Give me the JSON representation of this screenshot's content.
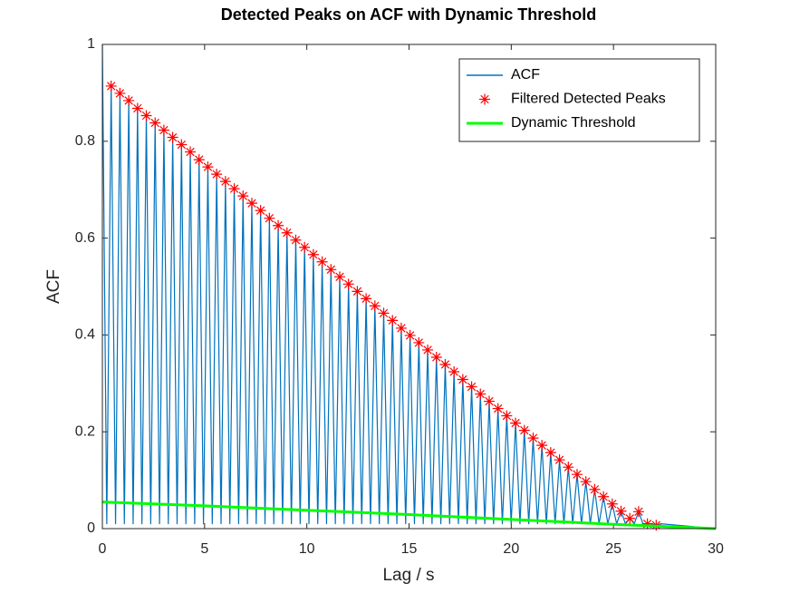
{
  "chart_data": {
    "type": "line",
    "title": "Detected Peaks on ACF with Dynamic Threshold",
    "xlabel": "Lag / s",
    "ylabel": "ACF",
    "xlim": [
      0,
      30
    ],
    "ylim": [
      0,
      1
    ],
    "xticks": [
      0,
      5,
      10,
      15,
      20,
      25,
      30
    ],
    "yticks": [
      0,
      0.2,
      0.4,
      0.6,
      0.8,
      1
    ],
    "grid": false,
    "legend": "northeast",
    "series": [
      {
        "name": "ACF",
        "color": "#0072bd",
        "style": "line",
        "x": [
          0,
          0.215,
          0.43,
          0.645,
          0.86,
          1.075,
          1.29,
          1.505,
          1.72,
          1.935,
          2.15,
          2.365,
          2.58,
          2.795,
          3.01,
          3.225,
          3.44,
          3.655,
          3.87,
          4.085,
          4.3,
          4.515,
          4.73,
          4.945,
          5.16,
          5.375,
          5.59,
          5.805,
          6.02,
          6.235,
          6.45,
          6.665,
          6.88,
          7.095,
          7.31,
          7.525,
          7.74,
          7.955,
          8.17,
          8.385,
          8.6,
          8.815,
          9.03,
          9.245,
          9.46,
          9.675,
          9.89,
          10.105,
          10.32,
          10.535,
          10.75,
          10.965,
          11.18,
          11.395,
          11.61,
          11.825,
          12.04,
          12.255,
          12.47,
          12.685,
          12.9,
          13.115,
          13.33,
          13.545,
          13.76,
          13.975,
          14.19,
          14.405,
          14.62,
          14.835,
          15.05,
          15.265,
          15.48,
          15.695,
          15.91,
          16.125,
          16.34,
          16.555,
          16.77,
          16.985,
          17.2,
          17.415,
          17.63,
          17.845,
          18.06,
          18.275,
          18.49,
          18.705,
          18.92,
          19.135,
          19.35,
          19.565,
          19.78,
          19.995,
          20.21,
          20.425,
          20.64,
          20.855,
          21.07,
          21.285,
          21.5,
          21.715,
          21.93,
          22.145,
          22.36,
          22.575,
          22.79,
          23.005,
          23.22,
          23.435,
          23.65,
          23.865,
          24.08,
          24.295,
          24.51,
          24.725,
          24.94,
          25.155,
          25.37,
          25.585,
          25.8,
          26.015,
          26.23,
          26.445,
          26.66,
          26.875,
          27.09,
          27.305,
          30
        ],
        "values": [
          1,
          0.01,
          0.914,
          0.01,
          0.899,
          0.01,
          0.884,
          0.01,
          0.868,
          0.01,
          0.853,
          0.01,
          0.838,
          0.01,
          0.823,
          0.01,
          0.808,
          0.01,
          0.793,
          0.01,
          0.778,
          0.01,
          0.762,
          0.01,
          0.747,
          0.01,
          0.732,
          0.01,
          0.717,
          0.01,
          0.702,
          0.01,
          0.687,
          0.01,
          0.672,
          0.01,
          0.657,
          0.01,
          0.641,
          0.01,
          0.626,
          0.01,
          0.611,
          0.01,
          0.596,
          0.01,
          0.581,
          0.01,
          0.566,
          0.01,
          0.551,
          0.01,
          0.535,
          0.01,
          0.52,
          0.01,
          0.505,
          0.01,
          0.49,
          0.01,
          0.475,
          0.01,
          0.46,
          0.01,
          0.445,
          0.01,
          0.43,
          0.01,
          0.414,
          0.01,
          0.399,
          0.01,
          0.384,
          0.01,
          0.369,
          0.01,
          0.354,
          0.01,
          0.339,
          0.01,
          0.324,
          0.01,
          0.308,
          0.01,
          0.293,
          0.01,
          0.278,
          0.01,
          0.263,
          0.01,
          0.248,
          0.01,
          0.233,
          0.01,
          0.218,
          0.01,
          0.203,
          0.01,
          0.187,
          0.01,
          0.172,
          0.01,
          0.157,
          0.01,
          0.142,
          0.01,
          0.127,
          0.01,
          0.112,
          0.01,
          0.097,
          0.01,
          0.081,
          0.01,
          0.066,
          0.01,
          0.051,
          0.01,
          0.036,
          0.01,
          0.021,
          0.01,
          0.035,
          0.01,
          0.01,
          0.01,
          0.007,
          0.01,
          0
        ]
      },
      {
        "name": "Filtered Detected Peaks",
        "color": "#ff0000",
        "style": "markers",
        "x": [
          0.43,
          0.86,
          1.29,
          1.72,
          2.15,
          2.58,
          3.01,
          3.44,
          3.87,
          4.3,
          4.73,
          5.16,
          5.59,
          6.02,
          6.45,
          6.88,
          7.31,
          7.74,
          8.17,
          8.6,
          9.03,
          9.46,
          9.89,
          10.32,
          10.75,
          11.18,
          11.61,
          12.04,
          12.47,
          12.9,
          13.33,
          13.76,
          14.19,
          14.62,
          15.05,
          15.48,
          15.91,
          16.34,
          16.77,
          17.2,
          17.63,
          18.06,
          18.49,
          18.92,
          19.35,
          19.78,
          20.21,
          20.64,
          21.07,
          21.5,
          21.93,
          22.36,
          22.79,
          23.22,
          23.65,
          24.08,
          24.51,
          24.94,
          25.37,
          25.8,
          26.23,
          26.66,
          27.09
        ],
        "values": [
          0.914,
          0.899,
          0.884,
          0.868,
          0.853,
          0.838,
          0.823,
          0.808,
          0.793,
          0.778,
          0.762,
          0.747,
          0.732,
          0.717,
          0.702,
          0.687,
          0.672,
          0.657,
          0.641,
          0.626,
          0.611,
          0.596,
          0.581,
          0.566,
          0.551,
          0.535,
          0.52,
          0.505,
          0.49,
          0.475,
          0.46,
          0.445,
          0.43,
          0.414,
          0.399,
          0.384,
          0.369,
          0.354,
          0.339,
          0.324,
          0.308,
          0.293,
          0.278,
          0.263,
          0.248,
          0.233,
          0.218,
          0.203,
          0.187,
          0.172,
          0.157,
          0.142,
          0.127,
          0.112,
          0.097,
          0.081,
          0.066,
          0.051,
          0.036,
          0.021,
          0.035,
          0.01,
          0.007
        ]
      },
      {
        "name": "Dynamic Threshold",
        "color": "#00ff00",
        "style": "line",
        "width": 3,
        "x": [
          0,
          5,
          10,
          15,
          20,
          25,
          30
        ],
        "values": [
          0.055,
          0.047,
          0.038,
          0.029,
          0.019,
          0.009,
          0
        ]
      }
    ]
  }
}
